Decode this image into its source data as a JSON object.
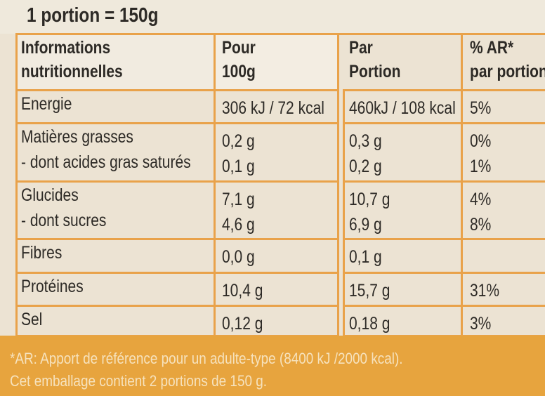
{
  "header": {
    "title": "1 portion = 150g"
  },
  "table": {
    "columns": [
      [
        "Informations",
        "nutritionnelles"
      ],
      [
        "Pour",
        "100g"
      ],
      [
        "Par",
        "Portion"
      ],
      [
        "% AR*",
        "par portion"
      ]
    ],
    "rows": [
      [
        [
          "Energie"
        ],
        [
          "306 kJ / 72 kcal"
        ],
        [
          "460kJ / 108 kcal"
        ],
        [
          "5%"
        ]
      ],
      [
        [
          "Matières grasses",
          "- dont acides gras saturés"
        ],
        [
          "0,2 g",
          "0,1 g"
        ],
        [
          "0,3 g",
          "0,2 g"
        ],
        [
          "0%",
          "1%"
        ]
      ],
      [
        [
          "Glucides",
          "- dont sucres"
        ],
        [
          "7,1 g",
          "4,6 g"
        ],
        [
          "10,7 g",
          "6,9 g"
        ],
        [
          "4%",
          "8%"
        ]
      ],
      [
        [
          "Fibres"
        ],
        [
          "0,0 g"
        ],
        [
          "0,1 g"
        ],
        []
      ],
      [
        [
          "Protéines"
        ],
        [
          "10,4 g"
        ],
        [
          "15,7 g"
        ],
        [
          "31%"
        ]
      ],
      [
        [
          "Sel"
        ],
        [
          "0,12 g"
        ],
        [
          "0,18 g"
        ],
        [
          "3%"
        ]
      ]
    ]
  },
  "footer": {
    "lines": [
      "*AR: Apport de référence pour un adulte-type (8400 kJ /2000 kcal).",
      "Cet emballage contient 2 portions de 150 g."
    ]
  }
}
